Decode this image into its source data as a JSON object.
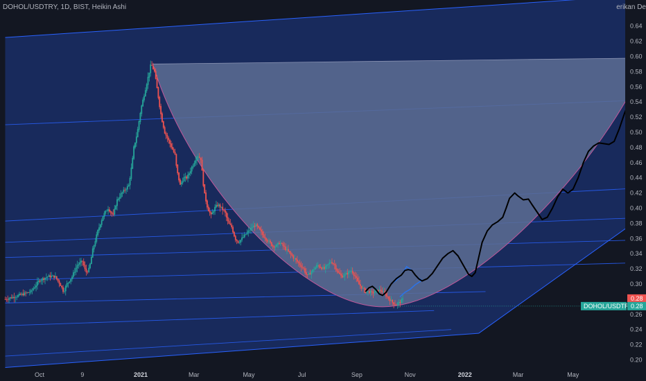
{
  "header": {
    "symbol": "DOHOL/USDTRY",
    "interval": "1D",
    "exchange": "BIST",
    "chart_style": "Heikin Ashi",
    "corner_text": "erikan De"
  },
  "colors": {
    "background": "#131722",
    "channel_fill": "#1a2c63",
    "channel_line": "#2962ff",
    "cup_fill": "#5d6d93",
    "cup_edge": "#c2579a",
    "candle_up": "#26a69a",
    "candle_down": "#ef5350",
    "projection_line": "#000000",
    "mini_path": "#2d73e6",
    "price_tag": "#ef5350",
    "symbol_tag": "#26a69a"
  },
  "chart_data": {
    "type": "line",
    "y_axis": {
      "min": 0.19,
      "max": 0.66,
      "scale": "linear",
      "position": "right",
      "ticks": [
        "0.64",
        "0.62",
        "0.60",
        "0.58",
        "0.56",
        "0.54",
        "0.52",
        "0.50",
        "0.48",
        "0.46",
        "0.44",
        "0.42",
        "0.40",
        "0.38",
        "0.36",
        "0.34",
        "0.32",
        "0.30",
        "0.28",
        "0.26",
        "0.24",
        "0.22",
        "0.20"
      ]
    },
    "x_axis": {
      "ticks": [
        {
          "label": "Oct",
          "t": 0,
          "bold": false
        },
        {
          "label": "9",
          "t": 25,
          "bold": false
        },
        {
          "label": "2021",
          "t": 59,
          "bold": true
        },
        {
          "label": "Mar",
          "t": 90,
          "bold": false
        },
        {
          "label": "May",
          "t": 122,
          "bold": false
        },
        {
          "label": "Jul",
          "t": 153,
          "bold": false
        },
        {
          "label": "Sep",
          "t": 185,
          "bold": false
        },
        {
          "label": "Nov",
          "t": 216,
          "bold": false
        },
        {
          "label": "2022",
          "t": 248,
          "bold": true
        },
        {
          "label": "Mar",
          "t": 279,
          "bold": false
        },
        {
          "label": "May",
          "t": 311,
          "bold": false
        }
      ]
    },
    "series": [
      {
        "kind": "heikin-ashi-price",
        "points": [
          [
            -20,
            0.28
          ],
          [
            -12,
            0.285
          ],
          [
            -5,
            0.29
          ],
          [
            0,
            0.305
          ],
          [
            5,
            0.31
          ],
          [
            9,
            0.31
          ],
          [
            12,
            0.3
          ],
          [
            14,
            0.29
          ],
          [
            16,
            0.3
          ],
          [
            19,
            0.31
          ],
          [
            22,
            0.325
          ],
          [
            25,
            0.33
          ],
          [
            27,
            0.315
          ],
          [
            29,
            0.32
          ],
          [
            31,
            0.345
          ],
          [
            34,
            0.37
          ],
          [
            37,
            0.39
          ],
          [
            40,
            0.4
          ],
          [
            43,
            0.39
          ],
          [
            45,
            0.41
          ],
          [
            48,
            0.42
          ],
          [
            52,
            0.43
          ],
          [
            54,
            0.46
          ],
          [
            55,
            0.48
          ],
          [
            57,
            0.5
          ],
          [
            59,
            0.53
          ],
          [
            61,
            0.55
          ],
          [
            63,
            0.57
          ],
          [
            65,
            0.59
          ],
          [
            67,
            0.58
          ],
          [
            69,
            0.55
          ],
          [
            71,
            0.52
          ],
          [
            73,
            0.5
          ],
          [
            75,
            0.49
          ],
          [
            77,
            0.48
          ],
          [
            79,
            0.47
          ],
          [
            80,
            0.45
          ],
          [
            82,
            0.43
          ],
          [
            84,
            0.44
          ],
          [
            86,
            0.44
          ],
          [
            88,
            0.45
          ],
          [
            90,
            0.46
          ],
          [
            92,
            0.47
          ],
          [
            94,
            0.465
          ],
          [
            96,
            0.42
          ],
          [
            98,
            0.4
          ],
          [
            100,
            0.39
          ],
          [
            102,
            0.4
          ],
          [
            104,
            0.405
          ],
          [
            106,
            0.4
          ],
          [
            108,
            0.395
          ],
          [
            110,
            0.38
          ],
          [
            112,
            0.375
          ],
          [
            114,
            0.36
          ],
          [
            116,
            0.355
          ],
          [
            118,
            0.36
          ],
          [
            120,
            0.365
          ],
          [
            122,
            0.37
          ],
          [
            124,
            0.375
          ],
          [
            126,
            0.378
          ],
          [
            128,
            0.372
          ],
          [
            130,
            0.365
          ],
          [
            132,
            0.36
          ],
          [
            134,
            0.355
          ],
          [
            136,
            0.35
          ],
          [
            138,
            0.35
          ],
          [
            140,
            0.355
          ],
          [
            142,
            0.35
          ],
          [
            144,
            0.345
          ],
          [
            146,
            0.34
          ],
          [
            148,
            0.335
          ],
          [
            150,
            0.33
          ],
          [
            152,
            0.325
          ],
          [
            154,
            0.32
          ],
          [
            156,
            0.31
          ],
          [
            158,
            0.315
          ],
          [
            160,
            0.32
          ],
          [
            162,
            0.325
          ],
          [
            164,
            0.322
          ],
          [
            166,
            0.32
          ],
          [
            168,
            0.325
          ],
          [
            170,
            0.33
          ],
          [
            172,
            0.325
          ],
          [
            174,
            0.315
          ],
          [
            176,
            0.31
          ],
          [
            178,
            0.312
          ],
          [
            180,
            0.315
          ],
          [
            182,
            0.318
          ],
          [
            184,
            0.31
          ],
          [
            186,
            0.3
          ],
          [
            188,
            0.295
          ],
          [
            190,
            0.29
          ],
          [
            192,
            0.29
          ],
          [
            194,
            0.288
          ],
          [
            196,
            0.29
          ],
          [
            198,
            0.292
          ],
          [
            200,
            0.29
          ],
          [
            202,
            0.285
          ],
          [
            204,
            0.28
          ],
          [
            206,
            0.275
          ],
          [
            208,
            0.273
          ],
          [
            210,
            0.276
          ],
          [
            212,
            0.28
          ]
        ]
      },
      {
        "kind": "projection",
        "points": [
          [
            190,
            0.29
          ],
          [
            192,
            0.295
          ],
          [
            194,
            0.297
          ],
          [
            196,
            0.293
          ],
          [
            198,
            0.287
          ],
          [
            200,
            0.285
          ],
          [
            202,
            0.289
          ],
          [
            205,
            0.3
          ],
          [
            208,
            0.307
          ],
          [
            211,
            0.312
          ],
          [
            213,
            0.318
          ],
          [
            215,
            0.319
          ],
          [
            217,
            0.318
          ],
          [
            219,
            0.312
          ],
          [
            221,
            0.307
          ],
          [
            223,
            0.304
          ],
          [
            226,
            0.307
          ],
          [
            229,
            0.314
          ],
          [
            232,
            0.324
          ],
          [
            235,
            0.334
          ],
          [
            238,
            0.34
          ],
          [
            241,
            0.344
          ],
          [
            244,
            0.337
          ],
          [
            247,
            0.325
          ],
          [
            250,
            0.313
          ],
          [
            252,
            0.31
          ],
          [
            254,
            0.315
          ],
          [
            256,
            0.335
          ],
          [
            258,
            0.355
          ],
          [
            261,
            0.37
          ],
          [
            264,
            0.378
          ],
          [
            267,
            0.382
          ],
          [
            270,
            0.388
          ],
          [
            272,
            0.4
          ],
          [
            274,
            0.413
          ],
          [
            277,
            0.42
          ],
          [
            279,
            0.416
          ],
          [
            282,
            0.411
          ],
          [
            285,
            0.412
          ],
          [
            287,
            0.405
          ],
          [
            290,
            0.395
          ],
          [
            293,
            0.385
          ],
          [
            296,
            0.388
          ],
          [
            299,
            0.4
          ],
          [
            302,
            0.415
          ],
          [
            305,
            0.425
          ],
          [
            308,
            0.42
          ],
          [
            311,
            0.425
          ],
          [
            314,
            0.44
          ],
          [
            317,
            0.46
          ],
          [
            320,
            0.475
          ],
          [
            323,
            0.482
          ],
          [
            326,
            0.486
          ],
          [
            329,
            0.485
          ],
          [
            332,
            0.484
          ],
          [
            335,
            0.488
          ],
          [
            338,
            0.505
          ],
          [
            341,
            0.525
          ],
          [
            344,
            0.542
          ],
          [
            347,
            0.556
          ],
          [
            350,
            0.575
          ]
        ]
      },
      {
        "kind": "mini-path",
        "points": [
          [
            205,
            0.3
          ],
          [
            208,
            0.305
          ],
          [
            211,
            0.312
          ],
          [
            214,
            0.323
          ],
          [
            217,
            0.318
          ],
          [
            220,
            0.309
          ],
          [
            223,
            0.305
          ],
          [
            219,
            0.299
          ],
          [
            216,
            0.293
          ],
          [
            213,
            0.289
          ],
          [
            210,
            0.283
          ]
        ]
      }
    ],
    "cup": {
      "left": [
        66,
        0.59
      ],
      "right": [
        354,
        0.598
      ],
      "bottom": [
        200,
        0.27
      ]
    },
    "channel": {
      "upper": [
        [
          -20,
          0.625
        ],
        [
          280,
          0.67
        ]
      ],
      "lower": [
        [
          -20,
          0.19
        ],
        [
          256,
          0.235
        ]
      ],
      "lower_right": [
        [
          256,
          0.235
        ],
        [
          380,
          0.435
        ]
      ],
      "fib_lines": [
        {
          "p0": [
            -20,
            0.51
          ],
          "p1": [
            380,
            0.545
          ]
        },
        {
          "p0": [
            -20,
            0.383
          ],
          "p1": [
            380,
            0.43
          ]
        },
        {
          "p0": [
            -20,
            0.355
          ],
          "p1": [
            380,
            0.39
          ]
        },
        {
          "p0": [
            -20,
            0.335
          ],
          "p1": [
            380,
            0.36
          ]
        },
        {
          "p0": [
            -20,
            0.305
          ],
          "p1": [
            380,
            0.33
          ]
        },
        {
          "p0": [
            -20,
            0.275
          ],
          "p1": [
            260,
            0.29
          ]
        },
        {
          "p0": [
            -20,
            0.245
          ],
          "p1": [
            230,
            0.265
          ]
        },
        {
          "p0": [
            -20,
            0.205
          ],
          "p1": [
            240,
            0.24
          ]
        }
      ]
    },
    "price_tags": [
      {
        "label": "0.28",
        "value": 0.28,
        "kind": "last"
      },
      {
        "label": "0.28",
        "value": 0.265,
        "kind": "symbol",
        "symbol": "DOHOL/USDTRY"
      }
    ]
  }
}
